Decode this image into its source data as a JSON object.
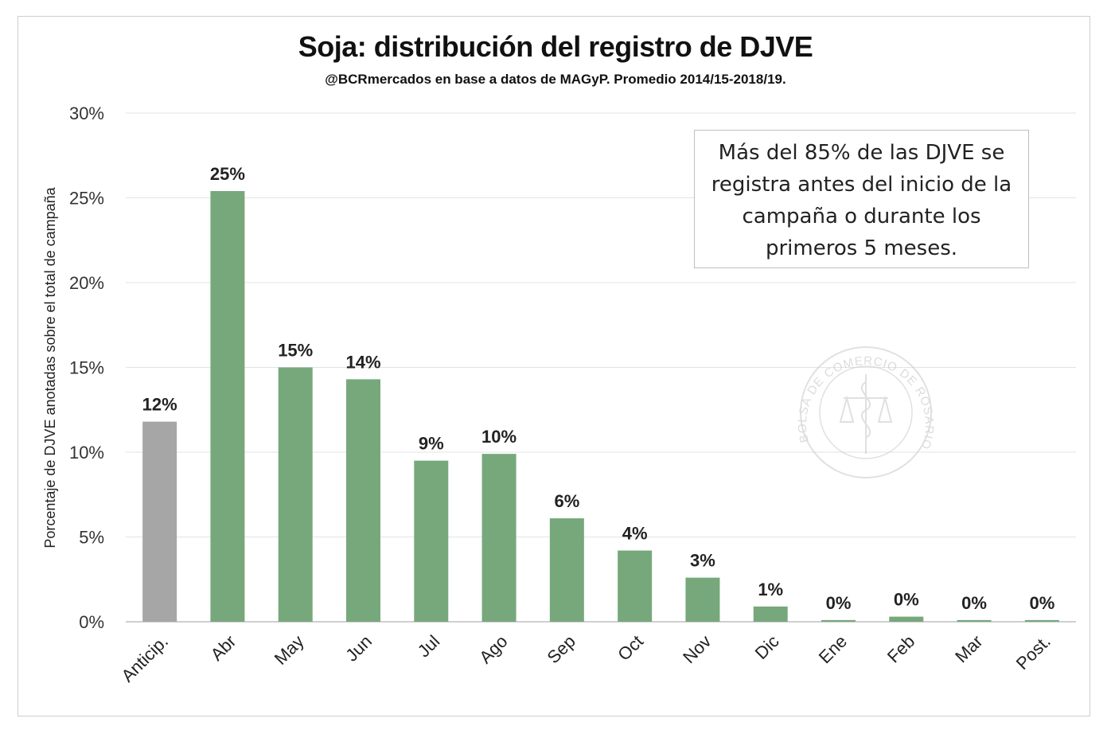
{
  "chart_data": {
    "type": "bar",
    "title": "Soja: distribución del registro de DJVE",
    "subtitle": "@BCRmercados en base a datos de MAGyP. Promedio 2014/15-2018/19.",
    "ylabel": "Porcentaje de DJVE anotadas sobre el total de campaña",
    "xlabel": "",
    "ylim": [
      0,
      30
    ],
    "yticks": [
      "0%",
      "5%",
      "10%",
      "15%",
      "20%",
      "25%",
      "30%"
    ],
    "grid": true,
    "categories": [
      "Anticip.",
      "Abr",
      "May",
      "Jun",
      "Jul",
      "Ago",
      "Sep",
      "Oct",
      "Nov",
      "Dic",
      "Ene",
      "Feb",
      "Mar",
      "Post."
    ],
    "values": [
      11.8,
      25.4,
      15.0,
      14.3,
      9.5,
      9.9,
      6.1,
      4.2,
      2.6,
      0.9,
      0.1,
      0.3,
      0.1,
      0.1
    ],
    "data_labels": [
      "12%",
      "25%",
      "15%",
      "14%",
      "9%",
      "10%",
      "6%",
      "4%",
      "3%",
      "1%",
      "0%",
      "0%",
      "0%",
      "0%"
    ],
    "colors": {
      "first_bar": "#a6a6a6",
      "bars": "#76a87c",
      "grid": "#e3e3e3",
      "axis": "#bfbfbf"
    },
    "annotation": [
      "Más del 85% de las DJVE se",
      "registra antes del inicio de la",
      "campaña o durante los",
      "primeros 5 meses."
    ]
  },
  "watermark": "BOLSA DE COMERCIO DE ROSARIO"
}
